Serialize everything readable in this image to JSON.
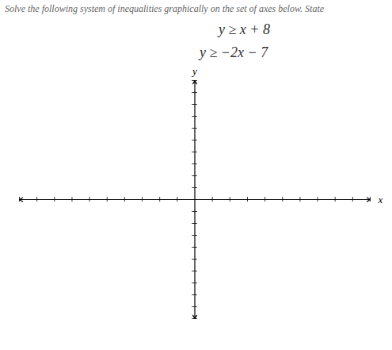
{
  "chart_data": {
    "type": "coordinate_plane",
    "title": "Solve the following system of inequalities graphically on the set of axes below. State",
    "annotations": [
      "y ≥ x + 8",
      "y ≥ −2x − 7"
    ],
    "xlabel": "x",
    "ylabel": "y",
    "xlim": [
      -10,
      10
    ],
    "ylim": [
      -10,
      10
    ],
    "xticks": [
      -10,
      -9,
      -8,
      -7,
      -6,
      -5,
      -4,
      -3,
      -2,
      -1,
      1,
      2,
      3,
      4,
      5,
      6,
      7,
      8,
      9,
      10
    ],
    "yticks": [
      -10,
      -9,
      -8,
      -7,
      -6,
      -5,
      -4,
      -3,
      -2,
      -1,
      1,
      2,
      3,
      4,
      5,
      6,
      7,
      8,
      9,
      10
    ],
    "tick_labels": false,
    "grid": false
  }
}
